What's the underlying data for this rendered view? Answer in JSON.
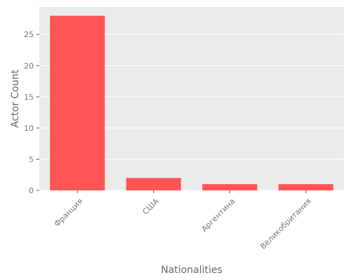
{
  "chart_data": {
    "type": "bar",
    "title": "",
    "xlabel": "Nationalities",
    "ylabel": "Actor Count",
    "categories": [
      "Франция",
      "США",
      "Аргентина",
      "Великобритания"
    ],
    "values": [
      28,
      2,
      1,
      1
    ],
    "ylim": [
      0,
      29.4
    ],
    "yticks": [
      0,
      5,
      10,
      15,
      20,
      25
    ],
    "grid": true,
    "legend": "none",
    "colors": {
      "bar": "#ff5555",
      "plot_background": "#ebebeb",
      "gridline": "#ffffff",
      "tick_text": "#777777",
      "axis_label_text": "#666666"
    }
  }
}
